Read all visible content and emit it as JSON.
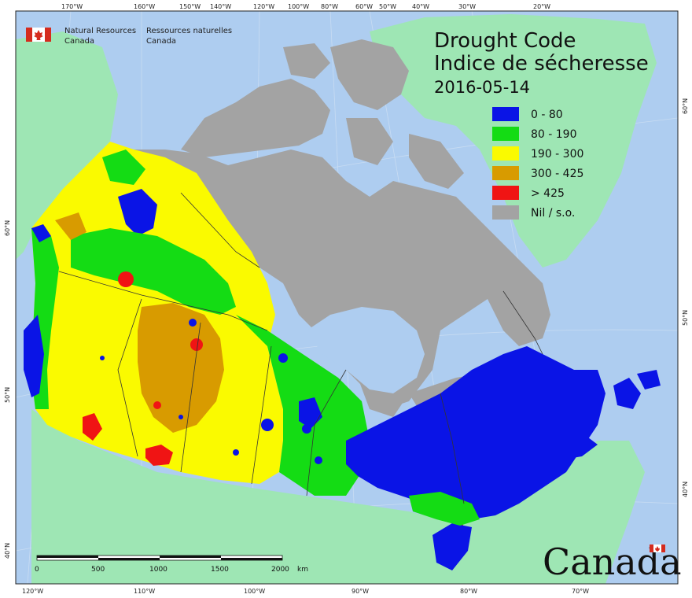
{
  "header": {
    "org_en_line1": "Natural Resources",
    "org_en_line2": "Canada",
    "org_fr_line1": "Ressources naturelles",
    "org_fr_line2": "Canada"
  },
  "title": {
    "line1": "Drought Code",
    "line2": "Indice de sécheresse",
    "date": "2016-05-14"
  },
  "legend": [
    {
      "label": "0 - 80",
      "color": "#0a14e6"
    },
    {
      "label": "80 - 190",
      "color": "#14dc14"
    },
    {
      "label": "190 - 300",
      "color": "#fafa00"
    },
    {
      "label": "300 - 425",
      "color": "#d89b00"
    },
    {
      "label": "> 425",
      "color": "#f01414"
    },
    {
      "label": "Nil / s.o.",
      "color": "#a3a3a3"
    }
  ],
  "top_ticks": [
    "170°W",
    "160°W",
    "150°W",
    "140°W",
    "120°W",
    "100°W",
    "80°W",
    "60°W",
    "50°W",
    "40°W",
    "30°W",
    "20°W"
  ],
  "bottom_ticks": [
    "120°W",
    "110°W",
    "100°W",
    "90°W",
    "80°W",
    "70°W"
  ],
  "left_ticks": [
    "60°N",
    "50°N",
    "40°N"
  ],
  "right_ticks": [
    "60°N",
    "50°N",
    "40°N"
  ],
  "scale": {
    "labels": [
      "0",
      "500",
      "1000",
      "1500",
      "2000"
    ],
    "unit": "km"
  },
  "wordmark": "Canada",
  "colors": {
    "ocean": "#aecdf0",
    "land_other": "#9ee6b4",
    "greenland": "#9ee6b4",
    "nil": "#a3a3a3",
    "flag_red": "#d52b1e"
  }
}
